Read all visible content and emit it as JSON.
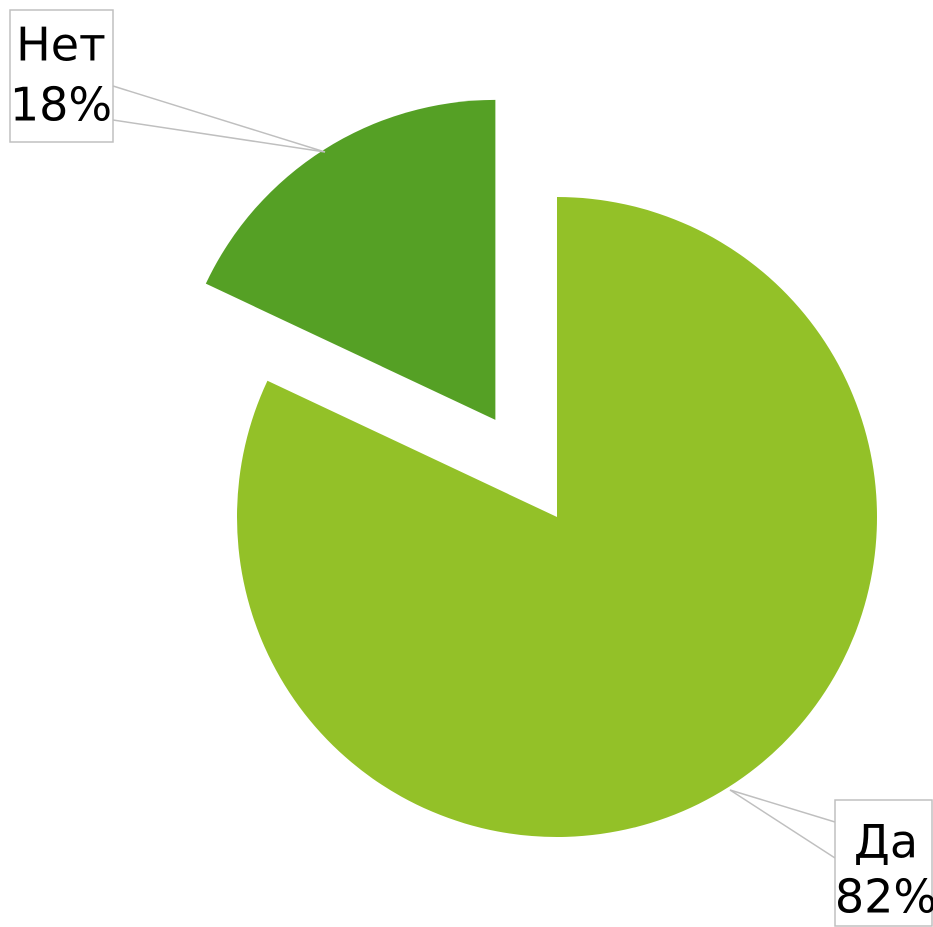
{
  "chart_data": {
    "type": "pie",
    "categories": [
      "Да",
      "Нет"
    ],
    "values": [
      82,
      18
    ],
    "value_labels": [
      "82%",
      "18%"
    ],
    "colors": [
      "#93c128",
      "#55a025"
    ],
    "exploded": [
      false,
      true
    ]
  }
}
